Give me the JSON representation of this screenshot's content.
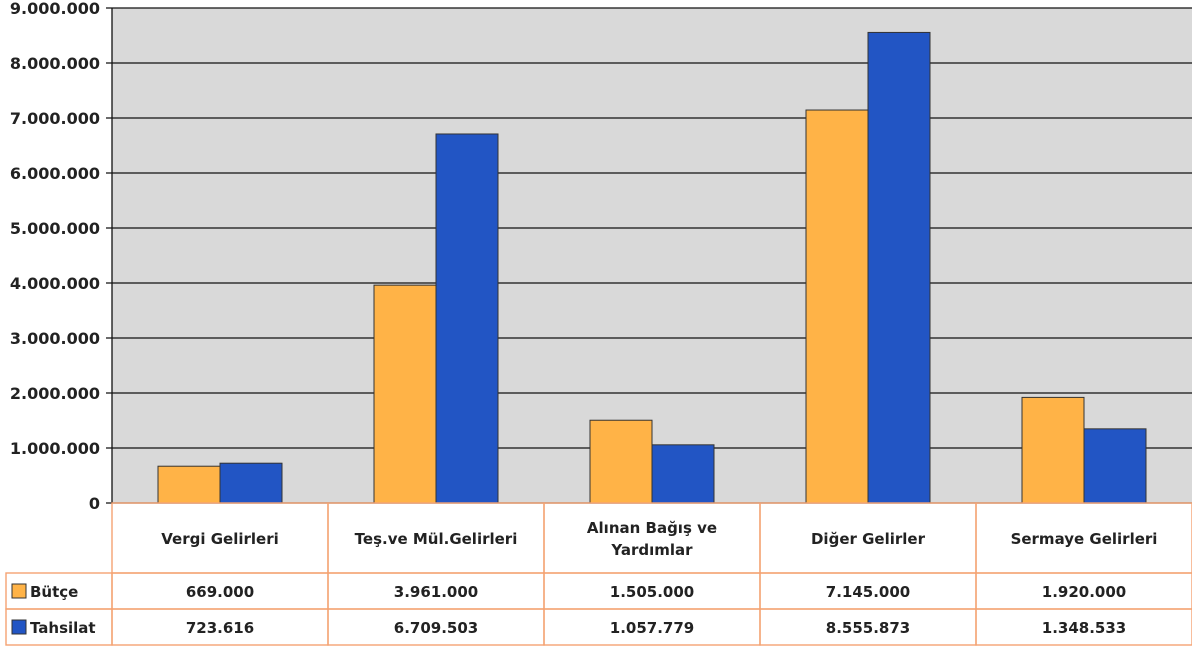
{
  "chart_data": {
    "type": "bar",
    "title": "",
    "xlabel": "",
    "ylabel": "",
    "ylim": [
      0,
      9000000
    ],
    "yticks": [
      0,
      1000000,
      2000000,
      3000000,
      4000000,
      5000000,
      6000000,
      7000000,
      8000000,
      9000000
    ],
    "ytick_labels": [
      "0",
      "1.000.000",
      "2.000.000",
      "3.000.000",
      "4.000.000",
      "5.000.000",
      "6.000.000",
      "7.000.000",
      "8.000.000",
      "9.000.000"
    ],
    "grid": true,
    "legend": "data-table-left",
    "categories": [
      "Vergi Gelirleri",
      "Teş.ve Mül.Gelirleri",
      "Alınan Bağış ve Yardımlar",
      "Diğer Gelirler",
      "Sermaye Gelirleri"
    ],
    "category_lines": [
      [
        "Vergi Gelirleri"
      ],
      [
        "Teş.ve Mül.Gelirleri"
      ],
      [
        "Alınan Bağış ve",
        "Yardımlar"
      ],
      [
        "Diğer Gelirler"
      ],
      [
        "Sermaye Gelirleri"
      ]
    ],
    "series": [
      {
        "name": "Bütçe",
        "color": "#FFB347",
        "values": [
          669000,
          3961000,
          1505000,
          7145000,
          1920000
        ],
        "value_labels": [
          "669.000",
          "3.961.000",
          "1.505.000",
          "7.145.000",
          "1.920.000"
        ]
      },
      {
        "name": "Tahsilat",
        "color": "#2255C4",
        "values": [
          723616,
          6709503,
          1057779,
          8555873,
          1348533
        ],
        "value_labels": [
          "723.616",
          "6.709.503",
          "1.057.779",
          "8.555.873",
          "1.348.533"
        ]
      }
    ]
  }
}
